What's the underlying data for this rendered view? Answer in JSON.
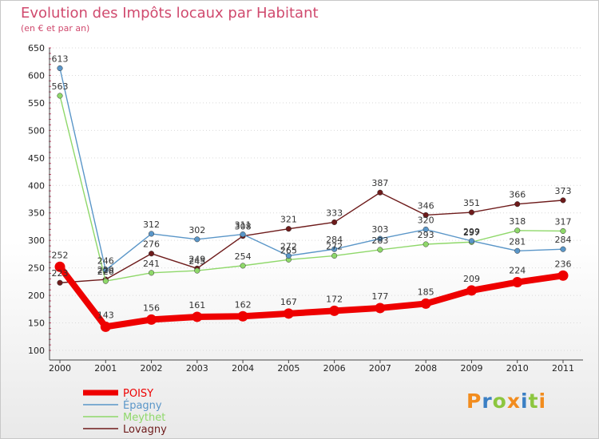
{
  "title": "Evolution des Impôts locaux par Habitant",
  "subtitle": "(en € et par an)",
  "brand": "Proxiti",
  "chart_data": {
    "type": "line",
    "title": "Evolution des Impôts locaux par Habitant",
    "ylabel": "(en € et par an)",
    "xlabel": "",
    "ylim": [
      100,
      650
    ],
    "yticks": [
      100,
      150,
      200,
      250,
      300,
      350,
      400,
      450,
      500,
      550,
      600,
      650
    ],
    "categories": [
      "2000",
      "2001",
      "2002",
      "2003",
      "2004",
      "2005",
      "2006",
      "2007",
      "2008",
      "2009",
      "2010",
      "2011"
    ],
    "legend_position": "bottom-left",
    "series": [
      {
        "name": "Lovagny",
        "color": "#6e1b1b",
        "values": [
          223,
          229,
          276,
          249,
          308,
          321,
          333,
          387,
          346,
          351,
          366,
          373
        ]
      },
      {
        "name": "Meythet",
        "color": "#8fd86a",
        "values": [
          563,
          226,
          241,
          245,
          254,
          265,
          272,
          283,
          293,
          297,
          318,
          317
        ]
      },
      {
        "name": "Épagny",
        "color": "#5a96c8",
        "values": [
          613,
          246,
          312,
          302,
          311,
          272,
          284,
          303,
          320,
          299,
          281,
          284
        ]
      },
      {
        "name": "POISY",
        "color": "#ee0000",
        "values": [
          252,
          143,
          156,
          161,
          162,
          167,
          172,
          177,
          185,
          209,
          224,
          236
        ]
      }
    ]
  }
}
